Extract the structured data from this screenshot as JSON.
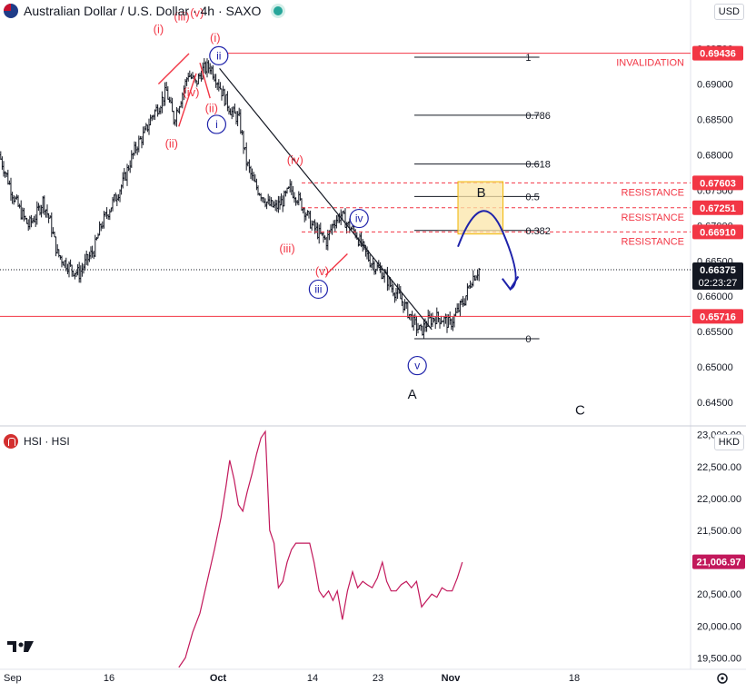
{
  "header": {
    "title": "Australian Dollar / U.S. Dollar · 4h · SAXO",
    "currency": "USD"
  },
  "sub_header": {
    "title": "HSI · HSI",
    "currency": "HKD"
  },
  "colors": {
    "red": "#f23645",
    "blue": "#1e22aa",
    "magenta": "#c2185b",
    "tag_red": "#f23645",
    "dark_tag": "#131722",
    "bull": "#131722"
  },
  "x_axis": {
    "labels": [
      "Sep",
      "16",
      "Oct",
      "14",
      "23",
      "Nov",
      "18"
    ]
  },
  "main_price_labels": [
    "0.69500",
    "0.69000",
    "0.68500",
    "0.68000",
    "0.67500",
    "0.67000",
    "0.66500",
    "0.66000",
    "0.65500",
    "0.65000",
    "0.64500"
  ],
  "hsi_price_labels": [
    "23,000.00",
    "22,500.00",
    "22,000.00",
    "21,500.00",
    "21,000.00",
    "20,500.00",
    "20,000.00",
    "19,500.00"
  ],
  "tags": [
    {
      "text": "0.69436",
      "price": 0.69436,
      "style": "red"
    },
    {
      "text": "0.67603",
      "price": 0.67603,
      "style": "red"
    },
    {
      "text": "0.67251",
      "price": 0.67251,
      "style": "red"
    },
    {
      "text": "0.66910",
      "price": 0.6691,
      "style": "red"
    },
    {
      "text": "0.65716",
      "price": 0.65716,
      "style": "red"
    }
  ],
  "current_tag": {
    "price_text": "0.66375",
    "timer_text": "02:23:27",
    "price": 0.66375
  },
  "hsi_tag": {
    "text": "21,006.97",
    "price": 21006.97
  },
  "levels": [
    {
      "label": "INVALIDATION",
      "price": 0.69436
    },
    {
      "label": "RESISTANCE",
      "price": 0.67603
    },
    {
      "label": "RESISTANCE",
      "price": 0.67251
    },
    {
      "label": "RESISTANCE",
      "price": 0.6691
    },
    {
      "label": "",
      "price": 0.65716
    }
  ],
  "fib": [
    {
      "label": "1",
      "price": 0.6938
    },
    {
      "label": "0.786",
      "price": 0.6856
    },
    {
      "label": "0.618",
      "price": 0.6787
    },
    {
      "label": "0.5",
      "price": 0.6741
    },
    {
      "label": "0.382",
      "price": 0.6693
    },
    {
      "label": "0",
      "price": 0.654
    }
  ],
  "wave_labels": [
    {
      "text": "(i)",
      "x_day": 21.8,
      "price": 0.6972,
      "color": "red"
    },
    {
      "text": "(ii)",
      "x_day": 23.6,
      "price": 0.681,
      "color": "red"
    },
    {
      "text": "(iii)",
      "x_day": 25.0,
      "price": 0.699,
      "color": "red"
    },
    {
      "text": "(iv)",
      "x_day": 26.3,
      "price": 0.6883,
      "color": "red"
    },
    {
      "text": "(v)",
      "x_day": 27.1,
      "price": 0.6995,
      "color": "red"
    },
    {
      "text": "(i)",
      "x_day": 29.6,
      "price": 0.696,
      "color": "red"
    },
    {
      "text": "(ii)",
      "x_day": 29.1,
      "price": 0.686,
      "color": "red"
    },
    {
      "text": "(iii)",
      "x_day": 39.5,
      "price": 0.6662,
      "color": "red"
    },
    {
      "text": "(iv)",
      "x_day": 40.6,
      "price": 0.6787,
      "color": "red"
    },
    {
      "text": "(v)",
      "x_day": 44.3,
      "price": 0.663,
      "color": "red"
    },
    {
      "text": "A",
      "x_day": 56.7,
      "price": 0.6455,
      "color": "dark"
    },
    {
      "text": "B",
      "x_day": 66.2,
      "price": 0.674,
      "color": "dark"
    },
    {
      "text": "C",
      "x_day": 79.8,
      "price": 0.6433,
      "color": "dark"
    }
  ],
  "circle_labels": [
    {
      "text": "ii",
      "x_day": 30.1,
      "price": 0.694
    },
    {
      "text": "i",
      "x_day": 29.8,
      "price": 0.6843
    },
    {
      "text": "iv",
      "x_day": 49.4,
      "price": 0.671
    },
    {
      "text": "iii",
      "x_day": 43.8,
      "price": 0.661
    },
    {
      "text": "v",
      "x_day": 57.4,
      "price": 0.6502
    }
  ],
  "chart_data": [
    {
      "type": "candlestick",
      "title": "Australian Dollar / U.S. Dollar · 4h · SAXO",
      "x_unit": "days from Sep 1, 2024",
      "x_ticks": [
        [
          0,
          "Sep"
        ],
        [
          15,
          "16"
        ],
        [
          30,
          "Oct"
        ],
        [
          43,
          "14"
        ],
        [
          52,
          "23"
        ],
        [
          62,
          "Nov"
        ],
        [
          79,
          "18"
        ]
      ],
      "xlim": [
        0,
        95
      ],
      "ylim": [
        0.6418,
        0.6988
      ],
      "y_axis_side": "right",
      "series": [
        {
          "values": [
            [
              0,
              0.68
            ],
            [
              1,
              0.677
            ],
            [
              2,
              0.674
            ],
            [
              3,
              0.6718
            ],
            [
              4,
              0.67
            ],
            [
              5,
              0.6713
            ],
            [
              6,
              0.6735
            ],
            [
              7,
              0.6705
            ],
            [
              8,
              0.666
            ],
            [
              9,
              0.6648
            ],
            [
              10,
              0.6638
            ],
            [
              11,
              0.6632
            ],
            [
              12,
              0.665
            ],
            [
              13,
              0.6665
            ],
            [
              14,
              0.67
            ],
            [
              15,
              0.672
            ],
            [
              16,
              0.674
            ],
            [
              17,
              0.676
            ],
            [
              18,
              0.679
            ],
            [
              19,
              0.6815
            ],
            [
              20,
              0.683
            ],
            [
              21,
              0.6855
            ],
            [
              22,
              0.687
            ],
            [
              23,
              0.689
            ],
            [
              24,
              0.685
            ],
            [
              25,
              0.688
            ],
            [
              26,
              0.6915
            ],
            [
              27,
              0.69
            ],
            [
              28,
              0.692
            ],
            [
              29,
              0.6925
            ],
            [
              30,
              0.6905
            ],
            [
              31,
              0.688
            ],
            [
              32,
              0.686
            ],
            [
              33,
              0.685
            ],
            [
              34,
              0.679
            ],
            [
              35,
              0.676
            ],
            [
              36,
              0.6745
            ],
            [
              37,
              0.673
            ],
            [
              38,
              0.6725
            ],
            [
              39,
              0.6735
            ],
            [
              40,
              0.6752
            ],
            [
              41,
              0.674
            ],
            [
              42,
              0.6722
            ],
            [
              43,
              0.67
            ],
            [
              44,
              0.6688
            ],
            [
              45,
              0.6678
            ],
            [
              46,
              0.6705
            ],
            [
              47,
              0.6715
            ],
            [
              48,
              0.67
            ],
            [
              49,
              0.669
            ],
            [
              50,
              0.6668
            ],
            [
              51,
              0.665
            ],
            [
              52,
              0.664
            ],
            [
              53,
              0.663
            ],
            [
              54,
              0.6612
            ],
            [
              55,
              0.66
            ],
            [
              56,
              0.6582
            ],
            [
              57,
              0.6562
            ],
            [
              58,
              0.655
            ],
            [
              59,
              0.6565
            ],
            [
              60,
              0.657
            ],
            [
              61,
              0.6568
            ],
            [
              62,
              0.656
            ],
            [
              63,
              0.6578
            ],
            [
              64,
              0.6595
            ],
            [
              65,
              0.6625
            ],
            [
              66,
              0.6638
            ]
          ]
        }
      ]
    },
    {
      "type": "line",
      "title": "HSI · HSI",
      "x_unit": "days from Sep 1, 2024",
      "xlim": [
        0,
        95
      ],
      "ylim": [
        19335,
        23124
      ],
      "y_axis_side": "right",
      "series": [
        {
          "values": [
            [
              24.6,
              19350
            ],
            [
              25.5,
              19500
            ],
            [
              26.5,
              19900
            ],
            [
              27.5,
              20200
            ],
            [
              28.5,
              20700
            ],
            [
              29.5,
              21200
            ],
            [
              30.4,
              21700
            ],
            [
              31.1,
              22200
            ],
            [
              31.6,
              22600
            ],
            [
              32.2,
              22300
            ],
            [
              32.8,
              21900
            ],
            [
              33.4,
              21800
            ],
            [
              34.0,
              22100
            ],
            [
              34.7,
              22400
            ],
            [
              35.3,
              22700
            ],
            [
              35.9,
              22950
            ],
            [
              36.5,
              23050
            ],
            [
              37.1,
              21500
            ],
            [
              37.7,
              21300
            ],
            [
              38.3,
              20600
            ],
            [
              38.9,
              20700
            ],
            [
              39.5,
              21000
            ],
            [
              40.1,
              21200
            ],
            [
              40.7,
              21300
            ],
            [
              41.6,
              21300
            ],
            [
              42.6,
              21300
            ],
            [
              43.2,
              21000
            ],
            [
              43.9,
              20550
            ],
            [
              44.5,
              20450
            ],
            [
              45.2,
              20550
            ],
            [
              45.8,
              20400
            ],
            [
              46.4,
              20550
            ],
            [
              47.1,
              20100
            ],
            [
              47.8,
              20550
            ],
            [
              48.5,
              20850
            ],
            [
              49.2,
              20600
            ],
            [
              49.9,
              20700
            ],
            [
              50.5,
              20650
            ],
            [
              51.2,
              20600
            ],
            [
              51.9,
              20750
            ],
            [
              52.6,
              21000
            ],
            [
              53.2,
              20700
            ],
            [
              53.8,
              20550
            ],
            [
              54.5,
              20550
            ],
            [
              55.2,
              20650
            ],
            [
              55.9,
              20700
            ],
            [
              56.6,
              20600
            ],
            [
              57.3,
              20700
            ],
            [
              58.0,
              20300
            ],
            [
              58.7,
              20400
            ],
            [
              59.4,
              20500
            ],
            [
              60.1,
              20450
            ],
            [
              60.8,
              20600
            ],
            [
              61.5,
              20550
            ],
            [
              62.2,
              20550
            ],
            [
              62.9,
              20750
            ],
            [
              63.6,
              21000
            ]
          ]
        }
      ]
    }
  ]
}
